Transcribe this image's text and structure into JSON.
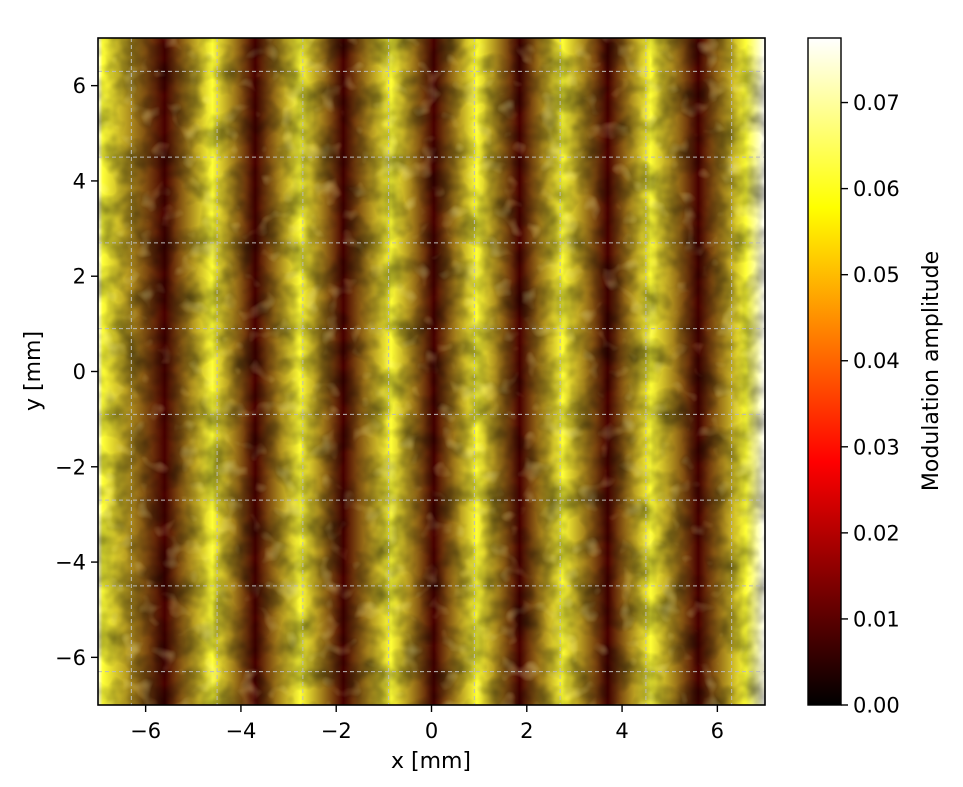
{
  "chart_data": {
    "type": "heatmap",
    "title": "",
    "xlabel": "x [mm]",
    "ylabel": "y [mm]",
    "xlim": [
      -7,
      7
    ],
    "ylim": [
      -7,
      7
    ],
    "x_ticks": [
      -6,
      -4,
      -2,
      0,
      2,
      4,
      6
    ],
    "y_ticks": [
      -6,
      -4,
      -2,
      0,
      2,
      4,
      6
    ],
    "colorbar": {
      "label": "Modulation amplitude",
      "range": [
        0.0,
        0.0775
      ],
      "ticks": [
        0.0,
        0.01,
        0.02,
        0.03,
        0.04,
        0.05,
        0.06,
        0.07
      ],
      "tick_labels": [
        "0.00",
        "0.01",
        "0.02",
        "0.03",
        "0.04",
        "0.05",
        "0.06",
        "0.07"
      ],
      "colormap": "hot",
      "colormap_stops": [
        "#000000",
        "#ff0000",
        "#ffff00",
        "#ffffff"
      ]
    },
    "grid": {
      "style": "dashed",
      "color": "#bbbbbb",
      "x_lines": [
        -6.3,
        -4.5,
        -2.7,
        -0.9,
        0.9,
        2.7,
        4.5,
        6.3
      ],
      "y_lines": [
        6.3,
        4.5,
        2.7,
        0.9,
        -0.9,
        -2.7,
        -4.5,
        -6.3
      ]
    },
    "bright_bands_x": [
      -6.9,
      -4.6,
      -2.75,
      -0.85,
      0.95,
      2.75,
      4.6,
      6.6
    ],
    "dark_bands_x": [
      -5.6,
      -3.7,
      -1.85,
      0.05,
      1.85,
      3.7,
      5.6
    ],
    "value_bright_band": 0.062,
    "value_dark_band": 0.008,
    "value_edge_outside": 0.0775
  }
}
